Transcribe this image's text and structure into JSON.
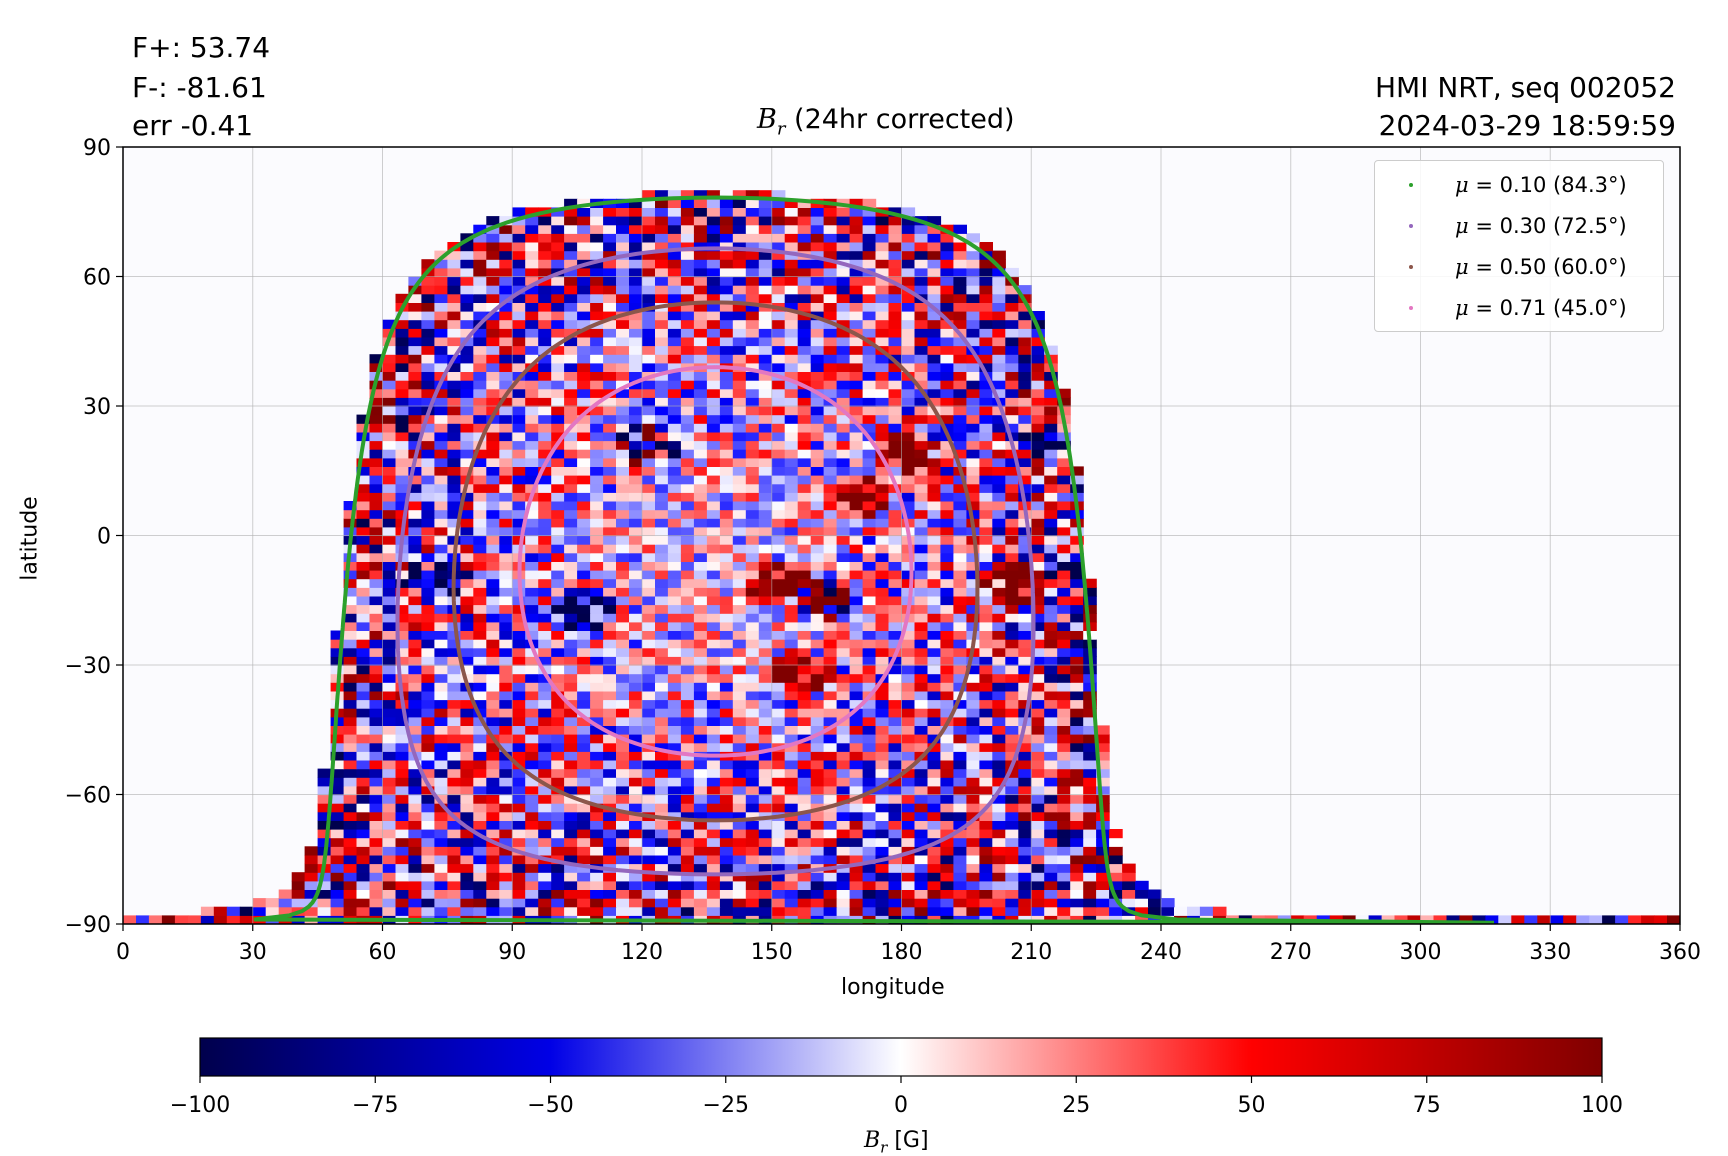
{
  "header": {
    "f_plus": "F+: 53.74",
    "f_minus": "F-: -81.61",
    "err": "err -0.41",
    "source": "HMI NRT, seq 002052",
    "timestamp": "2024-03-29 18:59:59"
  },
  "chart_data": {
    "type": "heatmap",
    "title_symbol": "B",
    "title_sub": "r",
    "title_rest": " (24hr corrected)",
    "xlabel": "longitude",
    "ylabel": "latitude",
    "xlim": [
      0,
      360
    ],
    "ylim": [
      -90,
      90
    ],
    "xticks": [
      0,
      30,
      60,
      90,
      120,
      150,
      180,
      210,
      240,
      270,
      300,
      330,
      360
    ],
    "yticks": [
      -90,
      -60,
      -30,
      0,
      30,
      60,
      90
    ],
    "xtick_labels": [
      "0",
      "30",
      "60",
      "90",
      "120",
      "150",
      "180",
      "210",
      "240",
      "270",
      "300",
      "330",
      "360"
    ],
    "ytick_labels": [
      "−90",
      "−60",
      "−30",
      "0",
      "30",
      "60",
      "90"
    ],
    "grid": true,
    "legend_position": "top-right",
    "disk_center_lon": 137,
    "disk_center_lat": -6,
    "contours": [
      {
        "label": "μ = 0.10 (84.3°)",
        "mu_symbol": "μ",
        "value_text": " = 0.10 (84.3°)",
        "color": "#2ca02c",
        "angle_deg": 84.3
      },
      {
        "label": "μ = 0.30 (72.5°)",
        "mu_symbol": "μ",
        "value_text": " = 0.30 (72.5°)",
        "color": "#9467bd",
        "angle_deg": 72.5
      },
      {
        "label": "μ = 0.50 (60.0°)",
        "mu_symbol": "μ",
        "value_text": " = 0.50 (60.0°)",
        "color": "#8c564b",
        "angle_deg": 60.0
      },
      {
        "label": "μ = 0.71 (45.0°)",
        "mu_symbol": "μ",
        "value_text": " = 0.71 (45.0°)",
        "color": "#e377c2",
        "angle_deg": 45.0
      }
    ],
    "colorbar": {
      "min": -100,
      "max": 100,
      "ticks": [
        -100,
        -75,
        -50,
        -25,
        0,
        25,
        50,
        75,
        100
      ],
      "tick_labels": [
        "−100",
        "−75",
        "−50",
        "−25",
        "0",
        "25",
        "50",
        "75",
        "100"
      ],
      "label_symbol": "B",
      "label_sub": "r",
      "label_rest": " [G]",
      "colormap": "seismic",
      "colors": [
        "#00004c",
        "#0000ff",
        "#ffffff",
        "#ff0000",
        "#800000"
      ]
    },
    "active_regions": [
      {
        "lon": 60,
        "lat": 25,
        "polarity": "mixed"
      },
      {
        "lon": 70,
        "lat": -12,
        "polarity": "negative"
      },
      {
        "lon": 120,
        "lat": 20,
        "polarity": "mixed"
      },
      {
        "lon": 105,
        "lat": -18,
        "polarity": "negative"
      },
      {
        "lon": 150,
        "lat": -12,
        "polarity": "positive"
      },
      {
        "lon": 160,
        "lat": -15,
        "polarity": "mixed"
      },
      {
        "lon": 180,
        "lat": 18,
        "polarity": "positive"
      },
      {
        "lon": 168,
        "lat": 8,
        "polarity": "positive"
      },
      {
        "lon": 155,
        "lat": -33,
        "polarity": "positive"
      },
      {
        "lon": 210,
        "lat": 22,
        "polarity": "negative"
      },
      {
        "lon": 212,
        "lat": 28,
        "polarity": "positive"
      },
      {
        "lon": 205,
        "lat": -12,
        "polarity": "positive"
      },
      {
        "lon": 218,
        "lat": -10,
        "polarity": "negative"
      }
    ]
  }
}
